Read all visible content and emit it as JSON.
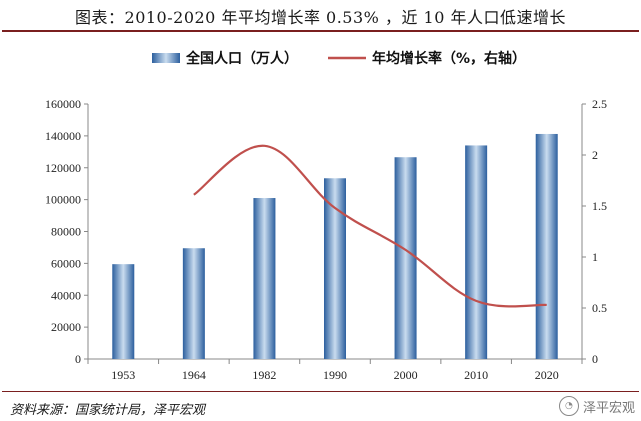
{
  "page": {
    "title": "图表：2010-2020 年平均增长率 0.53% ，近 10 年人口低速增长",
    "source": "资料来源：国家统计局，泽平宏观",
    "watermark": "泽平宏观"
  },
  "colors": {
    "bar": "#4a7fc0",
    "bar_light": "#c9dcef",
    "bar_dark": "#2c5f9e",
    "line": "#c0504d",
    "rule": "#7a1f1f",
    "axis": "#888888"
  },
  "chart_data": {
    "type": "bar",
    "categories": [
      "1953",
      "1964",
      "1982",
      "1990",
      "2000",
      "2010",
      "2020"
    ],
    "series": [
      {
        "name": "全国人口（万人）",
        "type": "bar",
        "axis": "left",
        "values": [
          59500,
          69500,
          101000,
          113400,
          126600,
          134000,
          141200
        ]
      },
      {
        "name": "年均增长率（%，右轴）",
        "type": "line",
        "axis": "right",
        "values": [
          null,
          1.61,
          2.09,
          1.48,
          1.07,
          0.57,
          0.53
        ]
      }
    ],
    "y_left": {
      "min": 0,
      "max": 160000,
      "ticks": [
        "0",
        "20000",
        "40000",
        "60000",
        "80000",
        "100000",
        "120000",
        "140000",
        "160000"
      ]
    },
    "y_right": {
      "min": 0,
      "max": 2.5,
      "ticks": [
        "0",
        "0.5",
        "1",
        "1.5",
        "2",
        "2.5"
      ]
    },
    "legend_position": "top",
    "grid": false
  }
}
